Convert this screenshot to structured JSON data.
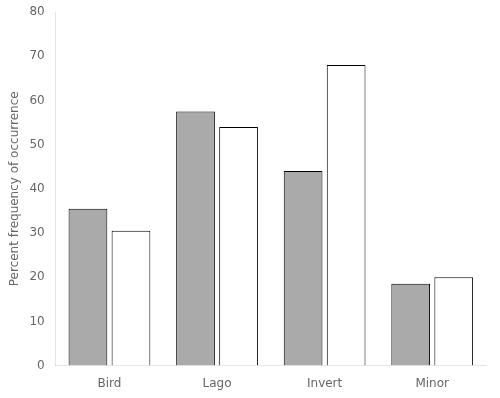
{
  "chart_data": {
    "type": "bar",
    "ylabel": "Percent frequency of occurrence",
    "categories": [
      "Bird",
      "Lago",
      "Invert",
      "Minor"
    ],
    "series": [
      {
        "color": "#aaaaaa",
        "values": [
          35.5,
          57.5,
          44.0,
          18.5
        ]
      },
      {
        "color": "#ffffff",
        "values": [
          30.5,
          54.0,
          68.0,
          20.0
        ]
      }
    ],
    "ylim": [
      0,
      80
    ],
    "yticks": [
      0,
      10,
      20,
      30,
      40,
      50,
      60,
      70,
      80
    ],
    "grid": false
  }
}
